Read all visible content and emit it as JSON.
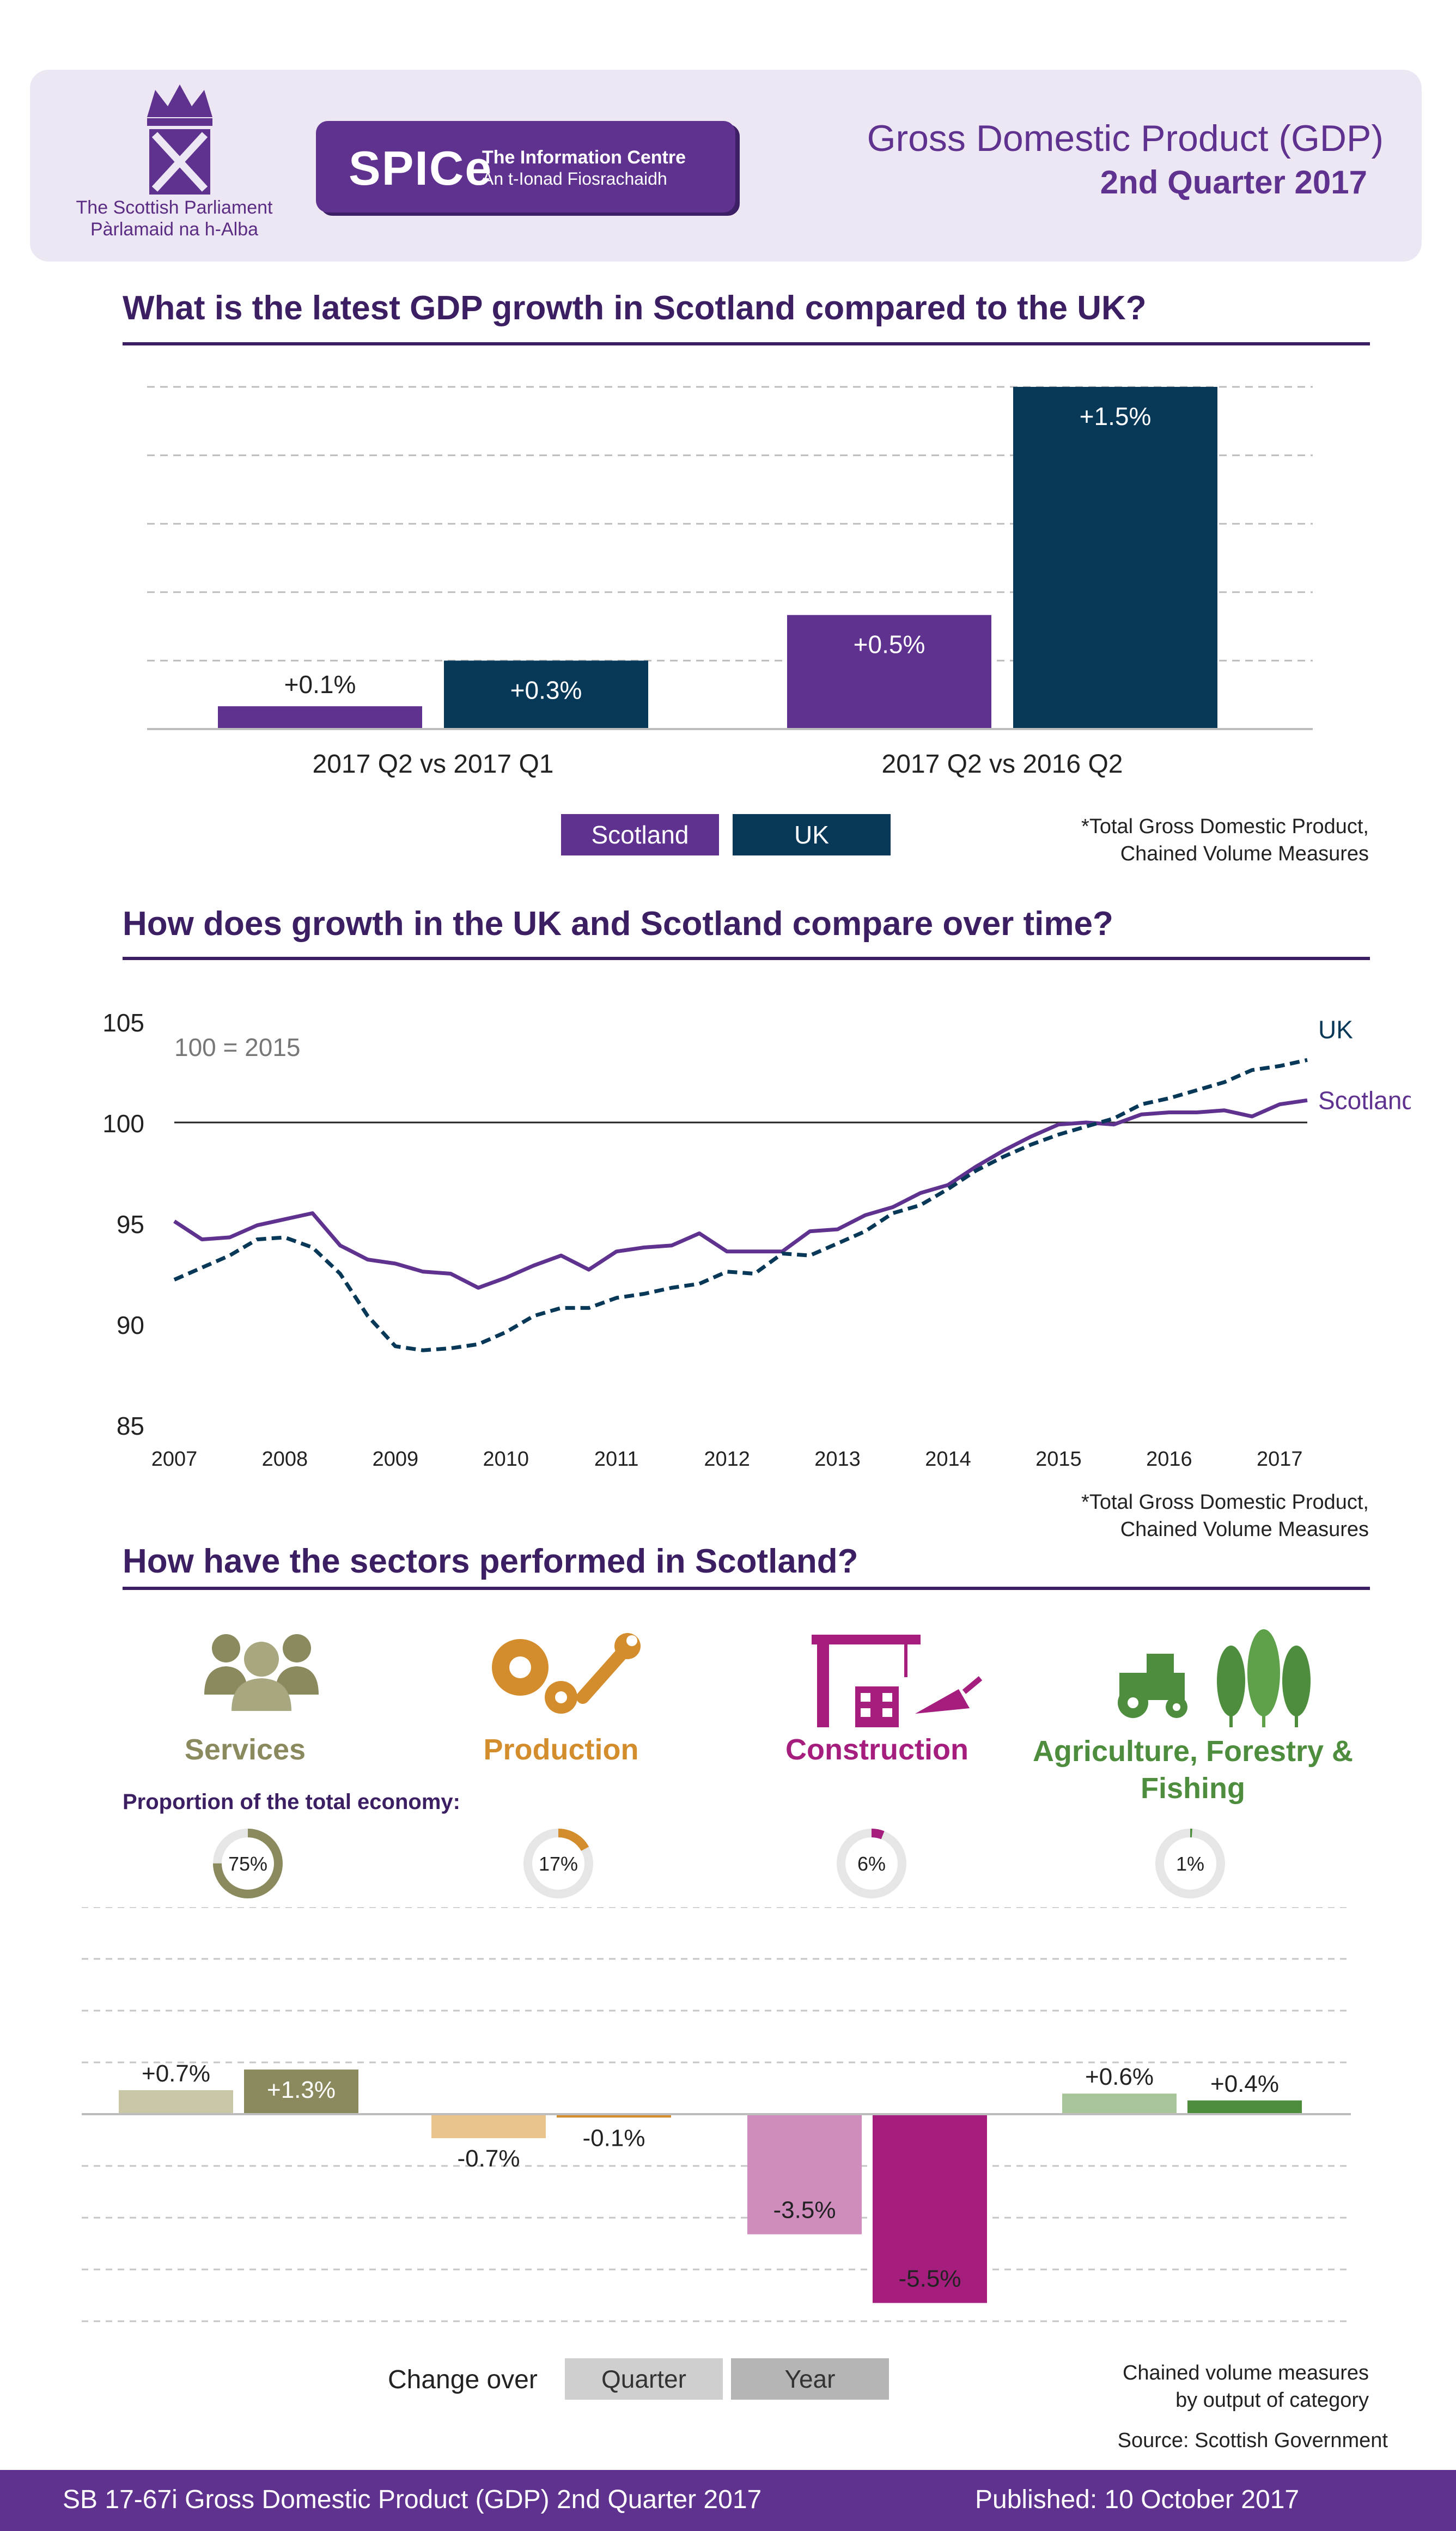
{
  "header": {
    "parliament_en": "The Scottish Parliament",
    "parliament_gd": "Pàrlamaid na h-Alba",
    "spice_word": "SPICe",
    "spice_line1": "The Information Centre",
    "spice_line2": "An t-Ionad Fiosrachaidh",
    "title": "Gross Domestic Product (GDP)",
    "subtitle": "2nd Quarter 2017"
  },
  "section1": {
    "heading": "What is the latest GDP growth in Scotland compared to the UK?",
    "note_line1": "*Total Gross Domestic Product,",
    "note_line2": "Chained Volume Measures"
  },
  "section2": {
    "heading": "How does growth in the UK and Scotland compare over time?",
    "note_line1": "*Total Gross Domestic Product,",
    "note_line2": "Chained Volume Measures"
  },
  "section3": {
    "heading": "How have the sectors performed in Scotland?",
    "proportion_label": "Proportion of the total economy:",
    "note_line1": "Chained volume measures",
    "note_line2": "by output of category",
    "source": "Source: Scottish Government",
    "change_over": "Change over"
  },
  "colors": {
    "scotland": "#5f3290",
    "uk": "#083857",
    "services": "#8b8a5f",
    "services_light": "#c9c7a7",
    "production": "#d48d2c",
    "production_light": "#e9c48d",
    "construction": "#a51e7e",
    "construction_light": "#cf8dbd",
    "agriculture": "#4d8d3d",
    "agriculture_light": "#a8c69a",
    "quarter_legend": "#cfcfcf",
    "year_legend": "#b5b5b5"
  },
  "chart_data": [
    {
      "type": "bar",
      "categories": [
        "2017 Q2 vs 2017 Q1",
        "2017 Q2 vs 2016 Q2"
      ],
      "series": [
        {
          "name": "Scotland",
          "values": [
            0.1,
            0.5
          ],
          "labels": [
            "+0.1%",
            "+0.5%"
          ]
        },
        {
          "name": "UK",
          "values": [
            0.3,
            1.5
          ],
          "labels": [
            "+0.3%",
            "+1.5%"
          ]
        }
      ],
      "ylim": [
        0,
        1.5
      ],
      "grid": true,
      "legend": "bottom-center"
    },
    {
      "type": "line",
      "annotation": "100 = 2015",
      "yticks": [
        "85",
        "90",
        "95",
        "100",
        "105"
      ],
      "ylim": [
        85,
        105
      ],
      "xticks": [
        "2007",
        "2008",
        "2009",
        "2010",
        "2011",
        "2012",
        "2013",
        "2014",
        "2015",
        "2016",
        "2017"
      ],
      "xlim": [
        2007.0,
        2017.25
      ],
      "reference_line": 100,
      "series": [
        {
          "name": "Scotland",
          "style": "solid",
          "x": [
            2007.0,
            2007.25,
            2007.5,
            2007.75,
            2008.0,
            2008.25,
            2008.5,
            2008.75,
            2009.0,
            2009.25,
            2009.5,
            2009.75,
            2010.0,
            2010.25,
            2010.5,
            2010.75,
            2011.0,
            2011.25,
            2011.5,
            2011.75,
            2012.0,
            2012.25,
            2012.5,
            2012.75,
            2013.0,
            2013.25,
            2013.5,
            2013.75,
            2014.0,
            2014.25,
            2014.5,
            2014.75,
            2015.0,
            2015.25,
            2015.5,
            2015.75,
            2016.0,
            2016.25,
            2016.5,
            2016.75,
            2017.0,
            2017.25
          ],
          "y": [
            95.1,
            94.2,
            94.3,
            94.9,
            95.2,
            95.5,
            93.9,
            93.2,
            93.0,
            92.6,
            92.5,
            91.8,
            92.3,
            92.9,
            93.4,
            92.7,
            93.6,
            93.8,
            93.9,
            94.5,
            93.6,
            93.6,
            93.6,
            94.6,
            94.7,
            95.4,
            95.8,
            96.5,
            96.9,
            97.8,
            98.6,
            99.3,
            99.9,
            100.0,
            99.9,
            100.4,
            100.5,
            100.5,
            100.6,
            100.3,
            100.9,
            101.1
          ]
        },
        {
          "name": "UK",
          "style": "dashed",
          "x": [
            2007.0,
            2007.25,
            2007.5,
            2007.75,
            2008.0,
            2008.25,
            2008.5,
            2008.75,
            2009.0,
            2009.25,
            2009.5,
            2009.75,
            2010.0,
            2010.25,
            2010.5,
            2010.75,
            2011.0,
            2011.25,
            2011.5,
            2011.75,
            2012.0,
            2012.25,
            2012.5,
            2012.75,
            2013.0,
            2013.25,
            2013.5,
            2013.75,
            2014.0,
            2014.25,
            2014.5,
            2014.75,
            2015.0,
            2015.25,
            2015.5,
            2015.75,
            2016.0,
            2016.25,
            2016.5,
            2016.75,
            2017.0,
            2017.25
          ],
          "y": [
            92.2,
            92.8,
            93.4,
            94.2,
            94.3,
            93.8,
            92.5,
            90.4,
            88.9,
            88.7,
            88.8,
            89.0,
            89.6,
            90.4,
            90.8,
            90.8,
            91.3,
            91.5,
            91.8,
            92.0,
            92.6,
            92.5,
            93.5,
            93.4,
            94.0,
            94.6,
            95.5,
            95.9,
            96.7,
            97.6,
            98.3,
            98.9,
            99.4,
            99.8,
            100.2,
            100.9,
            101.2,
            101.6,
            102.0,
            102.6,
            102.8,
            103.1
          ]
        }
      ]
    },
    {
      "type": "bar",
      "categories": [
        "Services",
        "Production",
        "Construction",
        "Agriculture, Forestry & Fishing"
      ],
      "series": [
        {
          "name": "Quarter",
          "values": [
            0.7,
            -0.7,
            -3.5,
            0.6
          ],
          "labels": [
            "+0.7%",
            "-0.7%",
            "-3.5%",
            "+0.6%"
          ]
        },
        {
          "name": "Year",
          "values": [
            1.3,
            -0.1,
            -5.5,
            0.4
          ],
          "labels": [
            "+1.3%",
            "-0.1%",
            "-5.5%",
            "+0.4%"
          ]
        }
      ],
      "proportions": [
        {
          "value": 75,
          "label": "75%"
        },
        {
          "value": 17,
          "label": "17%"
        },
        {
          "value": 6,
          "label": "6%"
        },
        {
          "value": 1,
          "label": "1%"
        }
      ],
      "ylim": [
        -6,
        6
      ],
      "grid": true,
      "legend": "bottom-center"
    }
  ],
  "footer": {
    "left": "SB 17-67i Gross Domestic Product (GDP) 2nd Quarter 2017",
    "right": "Published: 10 October 2017"
  }
}
